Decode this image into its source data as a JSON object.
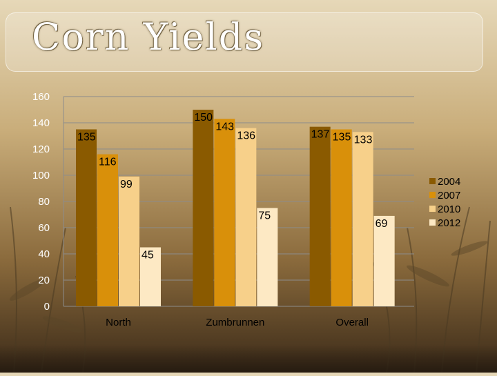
{
  "slide": {
    "title": "Corn Yields"
  },
  "chart_data": {
    "type": "bar",
    "title": "",
    "xlabel": "",
    "ylabel": "",
    "categories": [
      "North",
      "Zumbrunnen",
      "Overall"
    ],
    "series": [
      {
        "name": "2004",
        "color": "#8a5a00",
        "values": [
          135,
          150,
          137
        ]
      },
      {
        "name": "2007",
        "color": "#d9900a",
        "values": [
          116,
          143,
          135
        ]
      },
      {
        "name": "2010",
        "color": "#f7d08a",
        "values": [
          99,
          136,
          133
        ]
      },
      {
        "name": "2012",
        "color": "#fde9c4",
        "values": [
          45,
          75,
          69
        ]
      }
    ],
    "y_ticks": [
      "0",
      "20",
      "40",
      "60",
      "80",
      "100",
      "120",
      "140",
      "160"
    ],
    "ylim": [
      0,
      160
    ],
    "grid": true,
    "legend": "right"
  }
}
